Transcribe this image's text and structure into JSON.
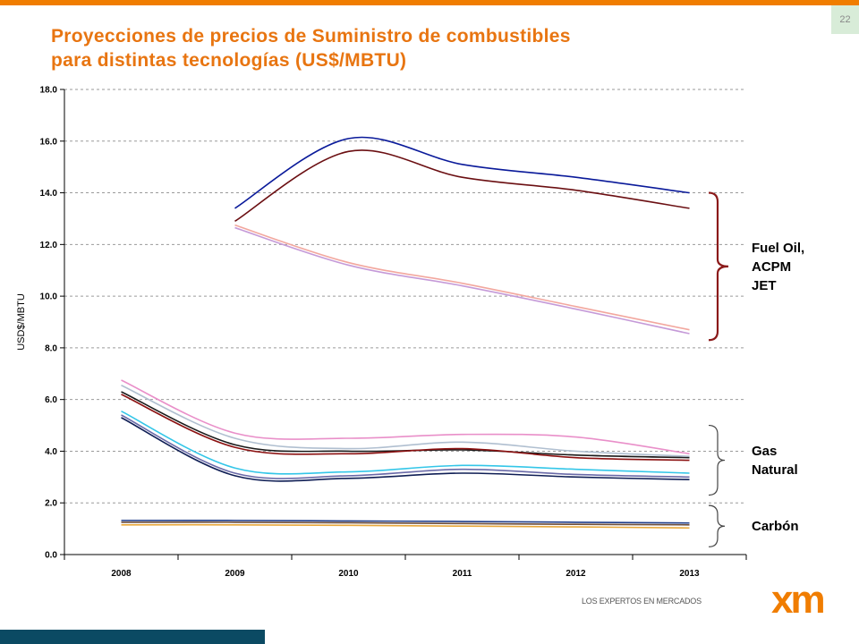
{
  "page_number": "22",
  "title_line1": "Proyecciones de precios de Suministro de combustibles",
  "title_line2": "para distintas tecnologías (US$/MBTU)",
  "colors": {
    "accent_orange": "#f07d00",
    "title_orange": "#e87511",
    "bottom_bar": "#0b4a63",
    "bracket": "#8b1a1a"
  },
  "logo": {
    "tagline": "LOS EXPERTOS EN MERCADOS",
    "mark": "xm"
  },
  "chart_data": {
    "type": "line",
    "title": "",
    "xlabel": "",
    "ylabel": "USD$/MBTU",
    "x": [
      2008,
      2009,
      2010,
      2011,
      2012,
      2013
    ],
    "x_tick_labels": [
      "2008",
      "2009",
      "2010",
      "2011",
      "2012",
      "2013"
    ],
    "y_tick_labels": [
      "0.0",
      "2.0",
      "4.0",
      "6.0",
      "8.0",
      "10.0",
      "12.0",
      "14.0",
      "16.0",
      "18.0"
    ],
    "ylim": [
      0,
      18
    ],
    "grid": "horizontal dashed",
    "group_labels": [
      {
        "lines": [
          "Fuel Oil,",
          "ACPM",
          "JET"
        ],
        "range": [
          8.3,
          14.0
        ]
      },
      {
        "lines": [
          "Gas",
          "Natural"
        ],
        "range": [
          2.3,
          5.0
        ]
      },
      {
        "lines": [
          "Carbón"
        ],
        "range": [
          0.3,
          1.9
        ]
      }
    ],
    "series": [
      {
        "color": "#0a1a9a",
        "x": [
          2009,
          2010,
          2011,
          2012,
          2013
        ],
        "values": [
          13.4,
          16.1,
          15.1,
          14.6,
          14.0
        ]
      },
      {
        "color": "#6b0f12",
        "x": [
          2009,
          2010,
          2011,
          2012,
          2013
        ],
        "values": [
          12.9,
          15.6,
          14.6,
          14.1,
          13.4
        ]
      },
      {
        "color": "#f2a79e",
        "x": [
          2009,
          2010,
          2011,
          2012,
          2013
        ],
        "values": [
          12.75,
          11.3,
          10.5,
          9.6,
          8.7
        ]
      },
      {
        "color": "#c59ad8",
        "x": [
          2009,
          2010,
          2011,
          2012,
          2013
        ],
        "values": [
          12.65,
          11.2,
          10.4,
          9.5,
          8.55
        ]
      },
      {
        "color": "#e98fc9",
        "x": [
          2008,
          2009,
          2010,
          2011,
          2012,
          2013
        ],
        "values": [
          6.75,
          4.7,
          4.5,
          4.65,
          4.55,
          3.9
        ]
      },
      {
        "color": "#b0bfd0",
        "x": [
          2008,
          2009,
          2010,
          2011,
          2012,
          2013
        ],
        "values": [
          6.55,
          4.5,
          4.1,
          4.35,
          4.0,
          3.8
        ]
      },
      {
        "color": "#1a1a1a",
        "x": [
          2008,
          2009,
          2010,
          2011,
          2012,
          2013
        ],
        "values": [
          6.3,
          4.25,
          4.0,
          4.05,
          3.85,
          3.75
        ]
      },
      {
        "color": "#8b1010",
        "x": [
          2008,
          2009,
          2010,
          2011,
          2012,
          2013
        ],
        "values": [
          6.2,
          4.15,
          3.9,
          4.1,
          3.75,
          3.65
        ]
      },
      {
        "color": "#33c6e8",
        "x": [
          2008,
          2009,
          2010,
          2011,
          2012,
          2013
        ],
        "values": [
          5.55,
          3.35,
          3.2,
          3.45,
          3.3,
          3.15
        ]
      },
      {
        "color": "#6a6aa8",
        "x": [
          2008,
          2009,
          2010,
          2011,
          2012,
          2013
        ],
        "values": [
          5.4,
          3.15,
          3.05,
          3.3,
          3.1,
          3.0
        ]
      },
      {
        "color": "#0f1e55",
        "x": [
          2008,
          2009,
          2010,
          2011,
          2012,
          2013
        ],
        "values": [
          5.3,
          3.05,
          2.95,
          3.15,
          3.0,
          2.9
        ]
      },
      {
        "color": "#1f3d8a",
        "x": [
          2008,
          2009,
          2010,
          2011,
          2012,
          2013
        ],
        "values": [
          1.32,
          1.32,
          1.3,
          1.28,
          1.25,
          1.22
        ]
      },
      {
        "color": "#6e4e3c",
        "x": [
          2008,
          2009,
          2010,
          2011,
          2012,
          2013
        ],
        "values": [
          1.25,
          1.25,
          1.23,
          1.2,
          1.17,
          1.15
        ]
      },
      {
        "color": "#e8a73a",
        "x": [
          2008,
          2009,
          2010,
          2011,
          2012,
          2013
        ],
        "values": [
          1.15,
          1.15,
          1.13,
          1.1,
          1.07,
          1.03
        ]
      }
    ]
  }
}
